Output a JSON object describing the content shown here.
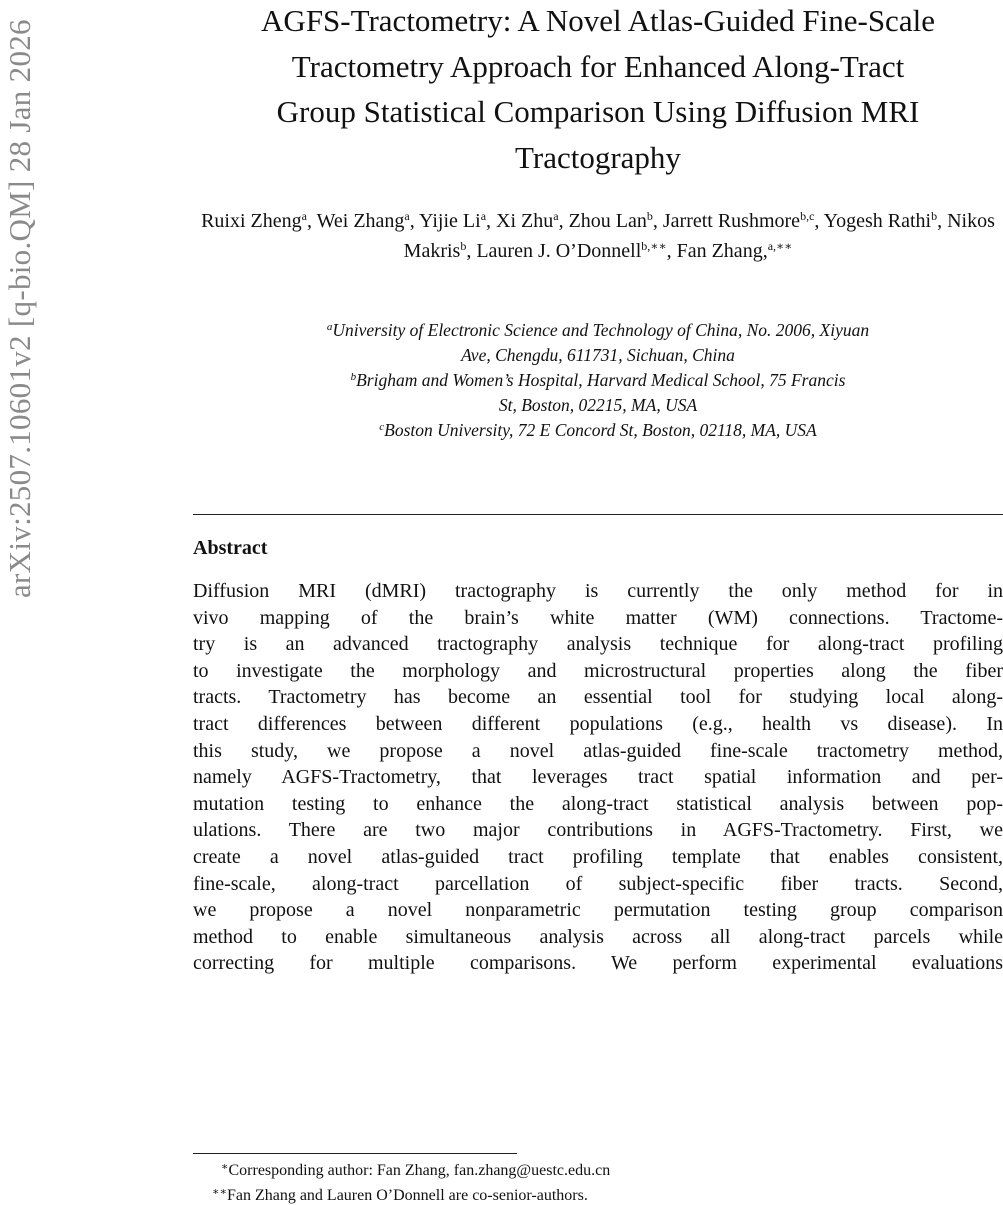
{
  "arxiv_stamp": "arXiv:2507.10601v2  [q-bio.QM]  28 Jan 2026",
  "title_lines": [
    "AGFS-Tractometry: A Novel Atlas-Guided Fine-Scale",
    "Tractometry Approach for Enhanced Along-Tract",
    "Group Statistical Comparison Using Diffusion MRI",
    "Tractography"
  ],
  "authors": [
    {
      "name": "Ruixi Zheng",
      "sup": "a",
      "sep": ", "
    },
    {
      "name": "Wei Zhang",
      "sup": "a",
      "sep": ", "
    },
    {
      "name": "Yijie Li",
      "sup": "a",
      "sep": ", "
    },
    {
      "name": "Xi Zhu",
      "sup": "a",
      "sep": ", "
    },
    {
      "name": "Zhou Lan",
      "sup": "b",
      "sep": ", "
    },
    {
      "name": "Jarrett Rushmore",
      "sup": "b,c",
      "sep": ", "
    },
    {
      "name": "Yogesh Rathi",
      "sup": "b",
      "sep": ", "
    },
    {
      "name": "Nikos Makris",
      "sup": "b",
      "sep": ", "
    },
    {
      "name": "Lauren J. O’Donnell",
      "sup": "b,∗∗",
      "sep": ", "
    },
    {
      "name": "Fan Zhang,",
      "sup": "a,∗∗",
      "sep": ""
    }
  ],
  "affiliations": [
    {
      "sup": "a",
      "lines": [
        "University of Electronic Science and Technology of China, No. 2006, Xiyuan",
        "Ave, Chengdu, 611731, Sichuan, China"
      ]
    },
    {
      "sup": "b",
      "lines": [
        "Brigham and Women’s Hospital, Harvard Medical School, 75 Francis",
        "St, Boston, 02215, MA, USA"
      ]
    },
    {
      "sup": "c",
      "lines": [
        "Boston University, 72 E Concord St, Boston, 02118, MA, USA"
      ]
    }
  ],
  "abstract": {
    "heading": "Abstract",
    "lines": [
      "Diffusion MRI (dMRI) tractography is currently the only method for in",
      "vivo mapping of the brain’s white matter (WM) connections.  Tractome-",
      "try is an advanced tractography analysis technique for along-tract profiling",
      "to investigate the morphology and microstructural properties along the fiber",
      "tracts.  Tractometry has become an essential tool for studying local along-",
      "tract differences between different populations (e.g., health vs disease).  In",
      "this study, we propose a novel atlas-guided fine-scale tractometry method,",
      "namely AGFS-Tractometry, that leverages tract spatial information and per-",
      "mutation testing to enhance the along-tract statistical analysis between pop-",
      "ulations.  There are two major contributions in AGFS-Tractometry.  First, we",
      "create a novel atlas-guided tract profiling template that enables consistent,",
      "fine-scale, along-tract parcellation of subject-specific fiber tracts.  Second,",
      "we propose a novel nonparametric permutation testing group comparison",
      "method to enable simultaneous analysis across all along-tract parcels while",
      "correcting for multiple comparisons.  We perform experimental evaluations"
    ]
  },
  "footnotes": [
    {
      "mark": "∗",
      "text": "Corresponding author: Fan Zhang, fan.zhang@uestc.edu.cn"
    },
    {
      "mark": "∗∗",
      "text": "Fan Zhang and Lauren O’Donnell are co-senior-authors."
    }
  ]
}
